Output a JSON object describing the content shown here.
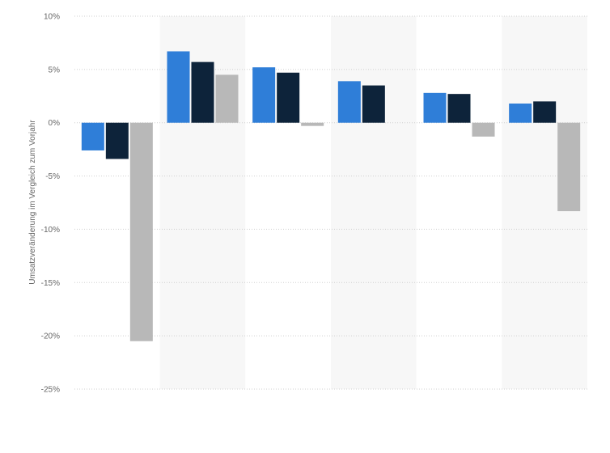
{
  "chart_data": {
    "type": "bar",
    "categories": [
      "",
      "",
      "",
      "",
      "",
      ""
    ],
    "series": [
      {
        "values": [
          -2.6,
          6.7,
          5.2,
          3.9,
          2.8,
          1.8
        ]
      },
      {
        "values": [
          -3.4,
          5.7,
          4.7,
          3.5,
          2.7,
          2.0
        ]
      },
      {
        "values": [
          -20.5,
          4.5,
          -0.3,
          0.0,
          -1.3,
          -8.3
        ]
      }
    ],
    "ylabel": "Umsatzveränderung im Vergleich zum Vorjahr",
    "ylim": [
      -25,
      10
    ],
    "yticks": [
      10,
      5,
      0,
      -5,
      -10,
      -15,
      -20,
      -25
    ],
    "ytick_labels": [
      "10%",
      "5%",
      "0%",
      "-5%",
      "-10%",
      "-15%",
      "-20%",
      "-25%"
    ],
    "grid": true,
    "legend": "none",
    "colors": [
      "#2f7ed8",
      "#0d233a",
      "#b8b8b8"
    ],
    "band_colors": [
      "#ffffff",
      "#f7f7f7"
    ]
  }
}
